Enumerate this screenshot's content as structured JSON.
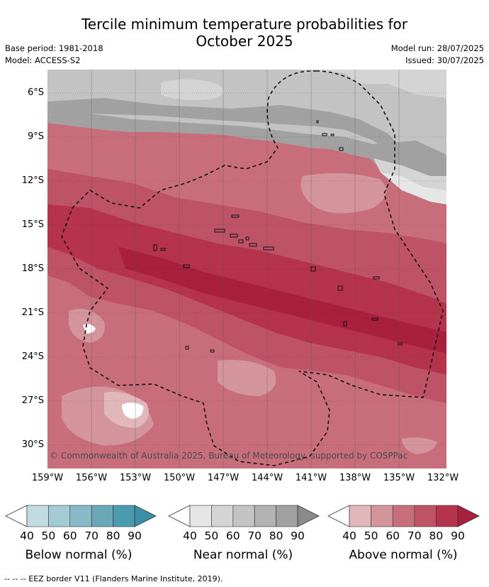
{
  "title_line1": "Tercile minimum temperature probabilities for",
  "title_line2": "October 2025",
  "base_period": "Base period: 1981-2018",
  "model": "Model: ACCESS-S2",
  "model_run": "Model run: 28/07/2025",
  "issued": "Issued: 30/07/2025",
  "copyright": "© Commonwealth of Australia 2025, Bureau of Meteorology, supported by COSPPac",
  "lat_labels": [
    "6°S",
    "9°S",
    "12°S",
    "15°S",
    "18°S",
    "21°S",
    "24°S",
    "27°S",
    "30°S"
  ],
  "lon_labels": [
    "159°W",
    "156°W",
    "153°W",
    "150°W",
    "147°W",
    "144°W",
    "141°W",
    "138°W",
    "135°W",
    "132°W"
  ],
  "colorbars": [
    {
      "label": "Below normal (%)",
      "ticks": [
        "40",
        "50",
        "60",
        "70",
        "80",
        "90"
      ],
      "colors": [
        "#c2dbe2",
        "#a4cbd4",
        "#87b9c6",
        "#6aa8b8",
        "#4a9bae",
        "#3a90a6"
      ]
    },
    {
      "label": "Near normal (%)",
      "ticks": [
        "40",
        "50",
        "60",
        "70",
        "80",
        "90"
      ],
      "colors": [
        "#e6e6e6",
        "#d4d4d4",
        "#c3c3c3",
        "#b2b2b2",
        "#a1a1a1",
        "#8a8a8a"
      ]
    },
    {
      "label": "Above normal (%)",
      "ticks": [
        "40",
        "50",
        "60",
        "70",
        "80",
        "90"
      ],
      "colors": [
        "#e2b7bc",
        "#d4949c",
        "#c86e7a",
        "#be5366",
        "#b5334b",
        "#a8203c"
      ]
    }
  ],
  "eez_note": "--  --  -- EEZ border V11 (Flanders Marine Institute, 2019)."
}
